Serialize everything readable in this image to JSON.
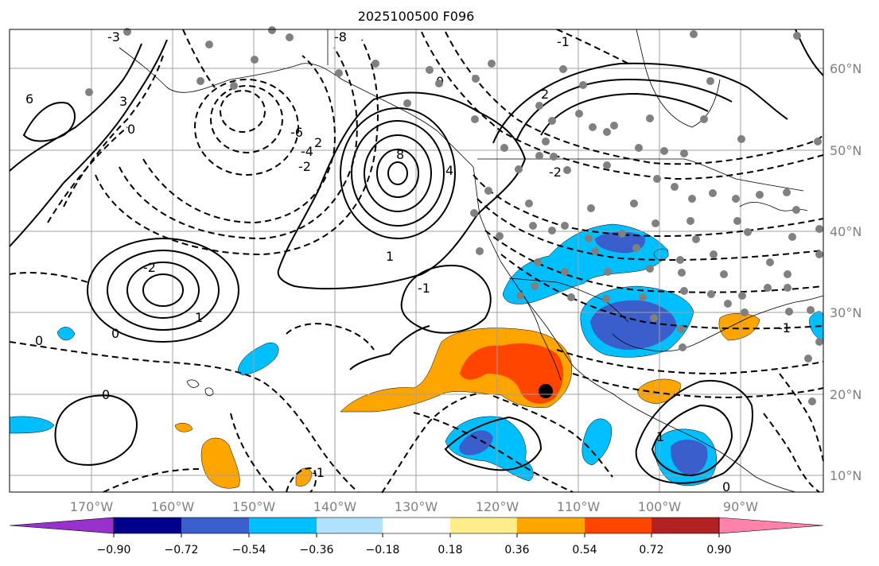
{
  "title": "2025100500 F096",
  "longitude_labels": [
    "170°W",
    "160°W",
    "150°W",
    "140°W",
    "130°W",
    "120°W",
    "110°W",
    "100°W",
    "90°W"
  ],
  "latitude_labels": [
    "60°N",
    "50°N",
    "40°N",
    "30°N",
    "20°N",
    "10°N"
  ],
  "colorbar": {
    "tick_labels": [
      "−0.90",
      "−0.72",
      "−0.54",
      "−0.36",
      "−0.18",
      "0.18",
      "0.36",
      "0.54",
      "0.72",
      "0.90"
    ],
    "colors": [
      "#9932cc",
      "#00008b",
      "#3a5fcd",
      "#00bfff",
      "#b0e2ff",
      "#ffffff",
      "#ffec8b",
      "#ffa500",
      "#ff4500",
      "#b22222",
      "#ff82ab"
    ]
  },
  "contour_labels": [
    "6",
    "3",
    "0",
    "-3",
    "-6",
    "-8",
    "2",
    "-2",
    "-4",
    "8",
    "4",
    "1",
    "-1",
    "0",
    "2",
    "-1",
    "1",
    "0",
    "-2",
    "-1",
    "0",
    "1",
    "-1",
    "-2",
    "0",
    "0"
  ],
  "colors": {
    "negative_strong": "#3a5fcd",
    "negative_moderate": "#00bfff",
    "positive_moderate": "#ffa500",
    "positive_strong": "#ff4500",
    "station": "#808080"
  }
}
